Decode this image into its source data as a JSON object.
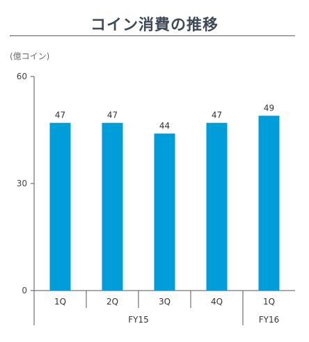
{
  "title": "コイン消費の推移",
  "chart_data": {
    "type": "bar",
    "unit_label": "(億コイン)",
    "ylim": [
      0,
      60
    ],
    "yticks": [
      0,
      30,
      60
    ],
    "categories": [
      "1Q",
      "2Q",
      "3Q",
      "4Q",
      "1Q"
    ],
    "groups": [
      {
        "label": "FY15",
        "count": 4
      },
      {
        "label": "FY16",
        "count": 1
      }
    ],
    "values": [
      47,
      47,
      44,
      47,
      49
    ],
    "data_labels": [
      "47",
      "47",
      "44",
      "47",
      "49"
    ],
    "bar_color": "#009ddb",
    "grid": false,
    "legend": "none"
  }
}
